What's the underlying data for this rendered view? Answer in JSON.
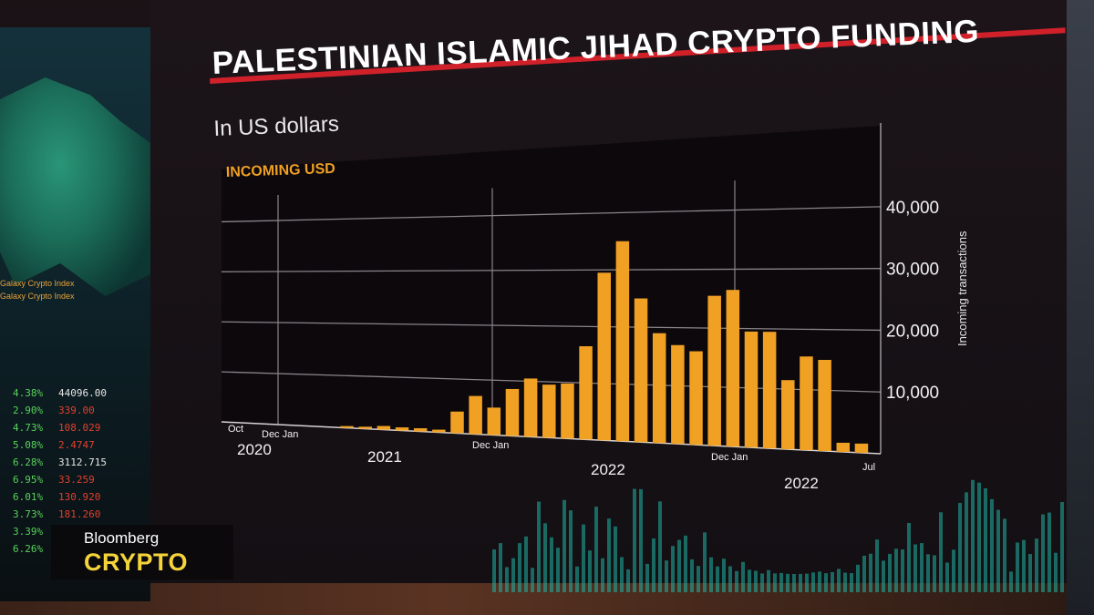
{
  "chart_data": {
    "type": "bar",
    "title": "PALESTINIAN ISLAMIC JIHAD CRYPTO FUNDING",
    "subtitle": "In US dollars",
    "series": [
      {
        "name": "INCOMING USD",
        "values": [
          0,
          0,
          0,
          300,
          400,
          700,
          600,
          600,
          500,
          4000,
          7000,
          5000,
          8500,
          10500,
          9500,
          9800,
          16500,
          29500,
          35000,
          25000,
          19000,
          17000,
          16000,
          25500,
          26500,
          19500,
          19500,
          11500,
          15500,
          15000,
          1500,
          1500
        ]
      }
    ],
    "ylabel": "Incoming transactions",
    "ylim": [
      0,
      45000
    ],
    "yticks": [
      10000,
      20000,
      30000,
      40000
    ],
    "ytick_labels": [
      "10,000",
      "20,000",
      "30,000",
      "40,000"
    ],
    "xlabels": [
      "Oct",
      "Dec Jan",
      "Dec Jan",
      "Dec Jan",
      "Jul"
    ],
    "year_labels": [
      "2020",
      "2021",
      "2022",
      "2022"
    ],
    "grid": true,
    "bar_color": "#f0a023",
    "grid_color": "#8a8489"
  },
  "brand": {
    "name": "Bloomberg",
    "show": "CRYPTO"
  },
  "left_wall": {
    "indexes": [
      "Galaxy Crypto Index",
      "Galaxy Crypto Index"
    ],
    "tickers": [
      {
        "pct": "4.38%",
        "val": "44096.00",
        "red": false
      },
      {
        "pct": "2.90%",
        "val": "339.00",
        "red": true
      },
      {
        "pct": "4.73%",
        "val": "108.029",
        "red": true
      },
      {
        "pct": "5.08%",
        "val": "2.4747",
        "red": true
      },
      {
        "pct": "6.28%",
        "val": "3112.715",
        "red": false
      },
      {
        "pct": "6.95%",
        "val": "33.259",
        "red": true
      },
      {
        "pct": "6.01%",
        "val": "130.920",
        "red": true
      },
      {
        "pct": "3.73%",
        "val": "181.260",
        "red": true
      },
      {
        "pct": "3.39%",
        "val": "",
        "red": true
      },
      {
        "pct": "6.26%",
        "val": "",
        "red": true
      }
    ]
  }
}
